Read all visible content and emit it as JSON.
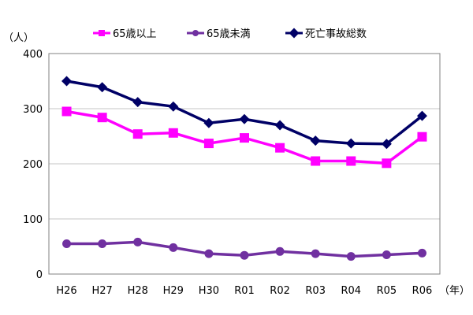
{
  "chart_data": {
    "type": "line",
    "title": "",
    "ylabel": "（人）",
    "xlabel": "（年）",
    "ylim": [
      0,
      400
    ],
    "yticks": [
      0,
      100,
      200,
      300,
      400
    ],
    "grid": true,
    "legend_position": "top",
    "categories": [
      "H26",
      "H27",
      "H28",
      "H29",
      "H30",
      "R01",
      "R02",
      "R03",
      "R04",
      "R05",
      "R06"
    ],
    "series": [
      {
        "name": "65歳以上",
        "color": "#ff00ff",
        "marker": "square",
        "values": [
          295,
          284,
          254,
          256,
          237,
          247,
          229,
          205,
          205,
          201,
          249
        ]
      },
      {
        "name": "65歳未満",
        "color": "#7030a0",
        "marker": "circle",
        "values": [
          55,
          55,
          58,
          48,
          37,
          34,
          41,
          37,
          32,
          35,
          38
        ]
      },
      {
        "name": "死亡事故総数",
        "color": "#000066",
        "marker": "diamond",
        "values": [
          350,
          339,
          312,
          304,
          274,
          281,
          270,
          242,
          237,
          236,
          287
        ]
      }
    ]
  }
}
